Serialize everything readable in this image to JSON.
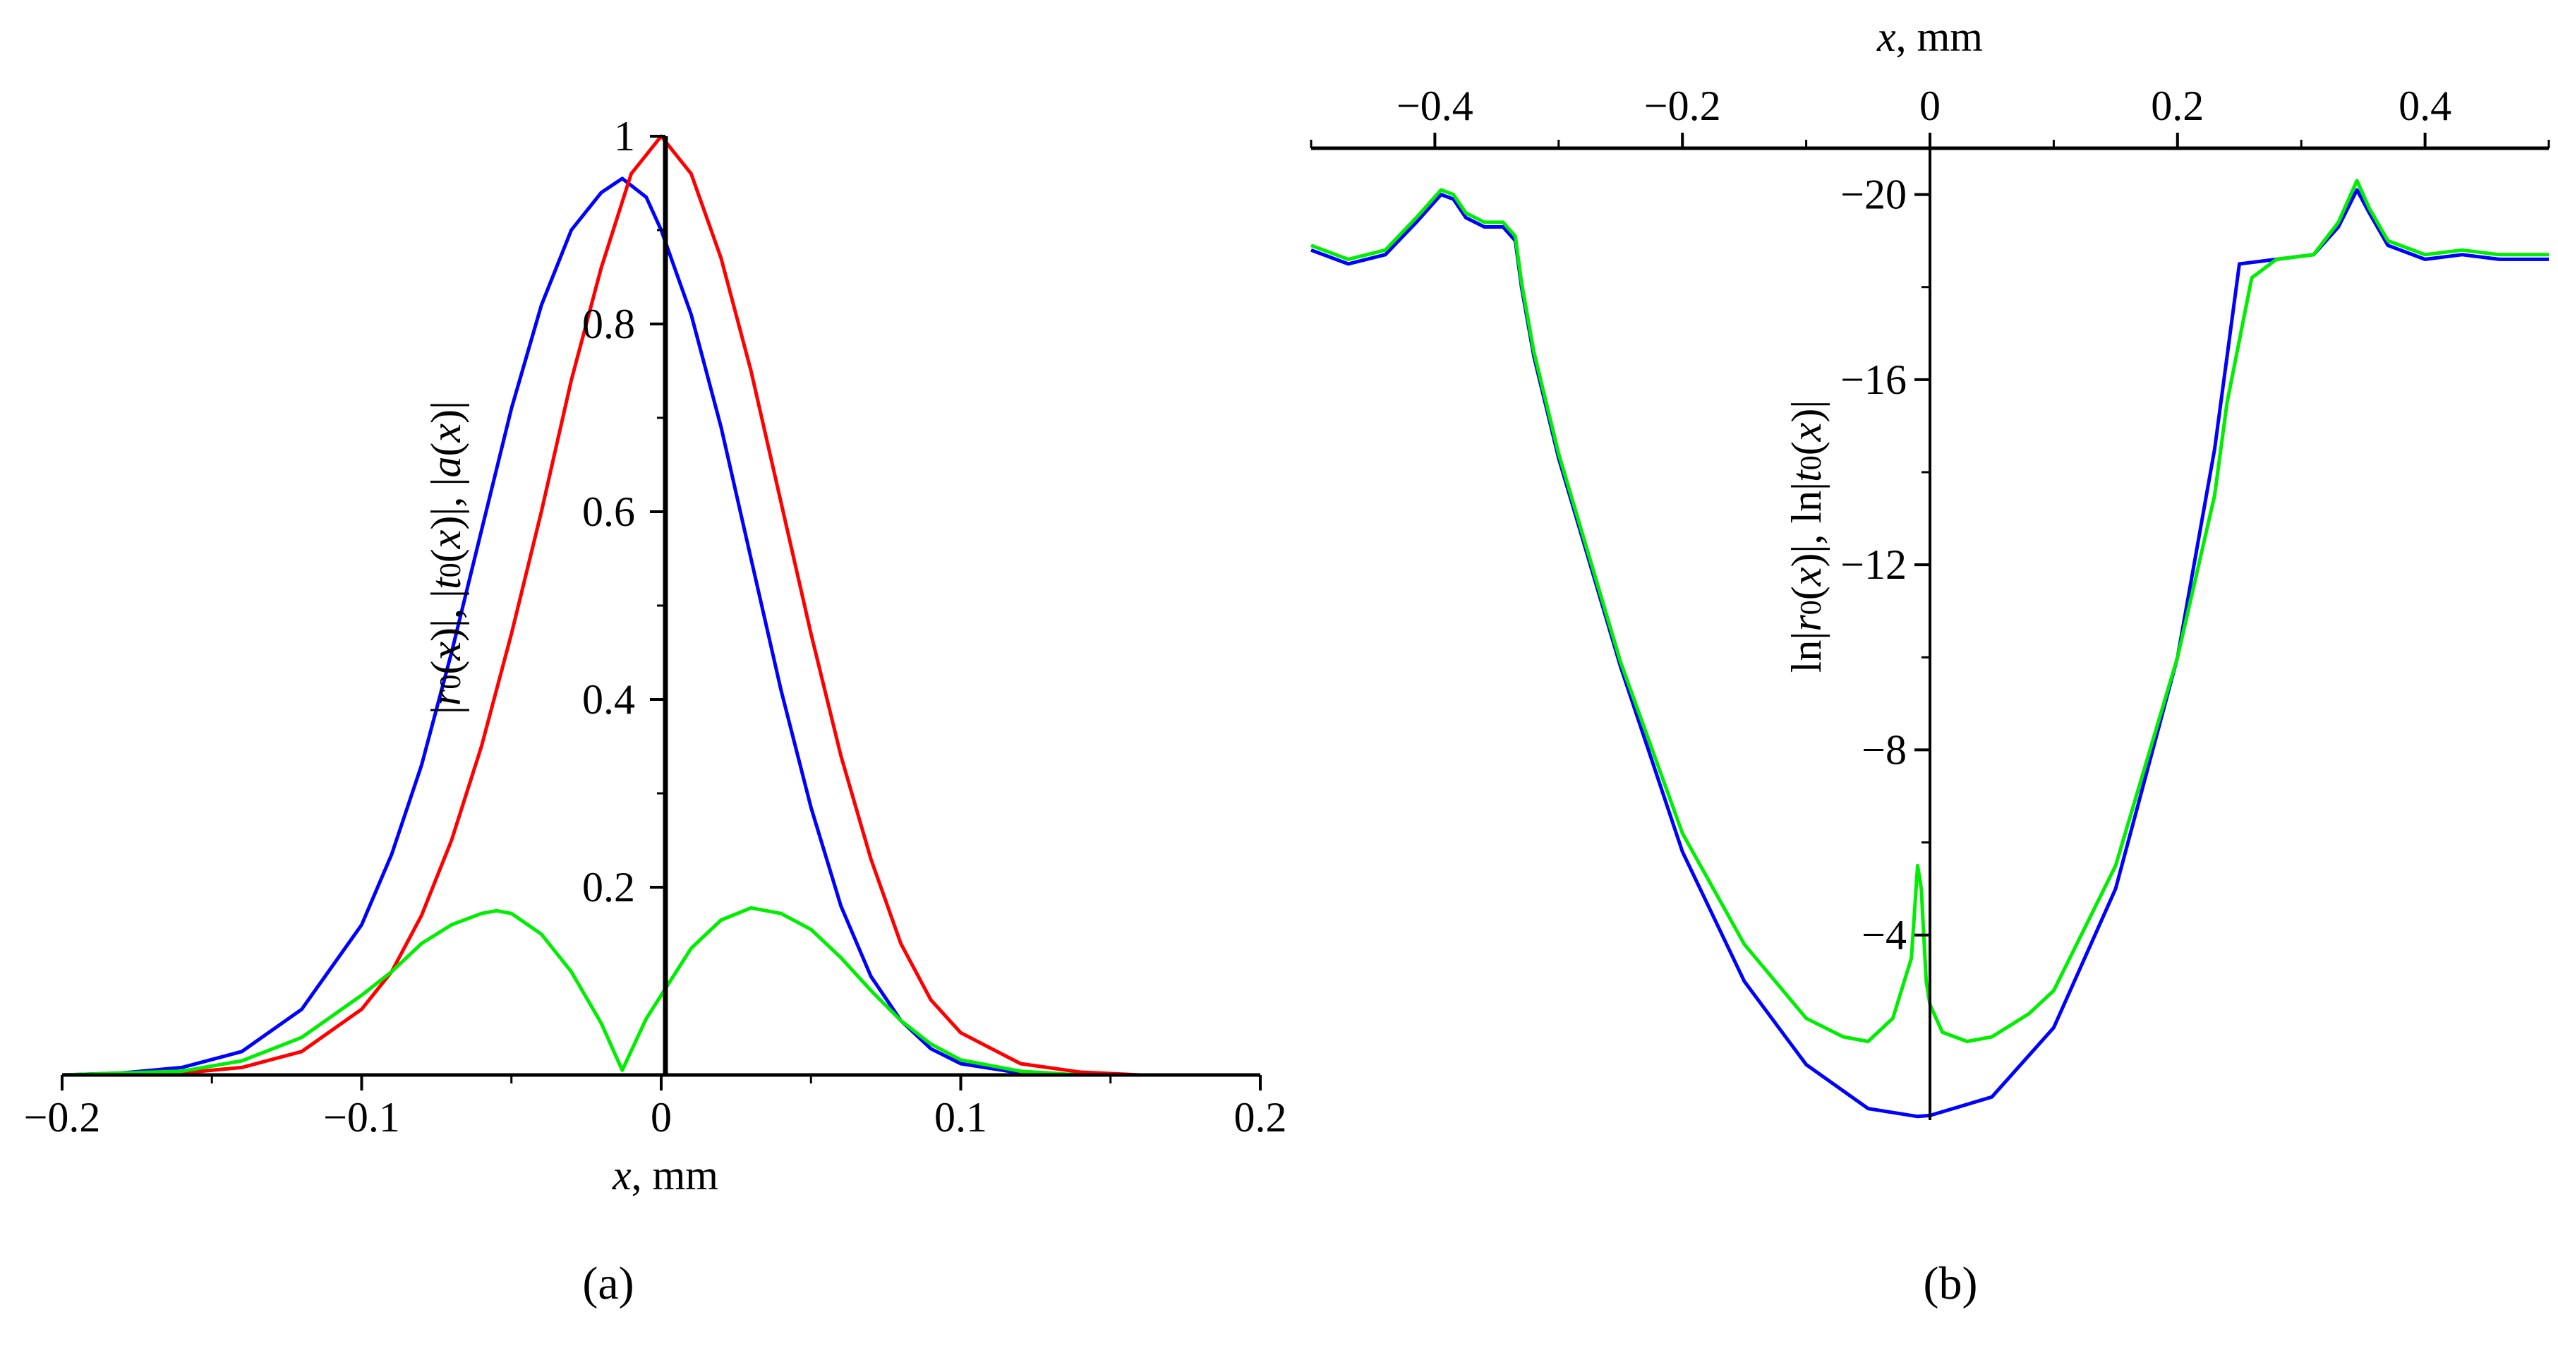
{
  "chart_data": [
    {
      "panel": "a",
      "type": "line",
      "xlabel_var": "x",
      "xlabel_unit": ", mm",
      "ylabel_parts": [
        "|",
        "r",
        "0",
        "(",
        "x",
        ")|, |",
        "t",
        "0",
        "(",
        "x",
        ")|, |",
        "a",
        "(",
        "x",
        ")|"
      ],
      "xlim": [
        -0.2,
        0.2
      ],
      "ylim": [
        0,
        1
      ],
      "x_ticks": [
        {
          "v": -0.2,
          "label": "−0.2"
        },
        {
          "v": -0.1,
          "label": "−0.1"
        },
        {
          "v": 0,
          "label": "0"
        },
        {
          "v": 0.1,
          "label": "0.1"
        },
        {
          "v": 0.2,
          "label": "0.2"
        }
      ],
      "y_ticks": [
        {
          "v": 0.2,
          "label": "0.2"
        },
        {
          "v": 0.4,
          "label": "0.4"
        },
        {
          "v": 0.6,
          "label": "0.6"
        },
        {
          "v": 0.8,
          "label": "0.8"
        },
        {
          "v": 1,
          "label": "1"
        }
      ],
      "series": [
        {
          "name": "|r0(x)|",
          "color": "#0000ff",
          "x": [
            -0.2,
            -0.18,
            -0.16,
            -0.14,
            -0.12,
            -0.1,
            -0.09,
            -0.08,
            -0.07,
            -0.06,
            -0.05,
            -0.04,
            -0.03,
            -0.02,
            -0.013,
            -0.005,
            0,
            0.01,
            0.02,
            0.03,
            0.04,
            0.05,
            0.06,
            0.07,
            0.08,
            0.09,
            0.1,
            0.12,
            0.14,
            0.16,
            0.18,
            0.2
          ],
          "y": [
            0.0,
            0.002,
            0.008,
            0.025,
            0.07,
            0.16,
            0.235,
            0.33,
            0.45,
            0.58,
            0.71,
            0.82,
            0.9,
            0.94,
            0.955,
            0.935,
            0.9,
            0.81,
            0.69,
            0.55,
            0.41,
            0.285,
            0.18,
            0.105,
            0.058,
            0.028,
            0.012,
            0.002,
            0.0,
            0.0,
            0.0,
            0.0
          ]
        },
        {
          "name": "|t0(x)|",
          "color": "#ff0000",
          "x": [
            -0.2,
            -0.16,
            -0.14,
            -0.12,
            -0.1,
            -0.09,
            -0.08,
            -0.07,
            -0.06,
            -0.05,
            -0.04,
            -0.03,
            -0.02,
            -0.01,
            0,
            0.01,
            0.02,
            0.03,
            0.04,
            0.05,
            0.06,
            0.07,
            0.08,
            0.09,
            0.1,
            0.12,
            0.14,
            0.16,
            0.2
          ],
          "y": [
            0.0,
            0.002,
            0.008,
            0.025,
            0.07,
            0.11,
            0.17,
            0.25,
            0.35,
            0.47,
            0.6,
            0.74,
            0.86,
            0.96,
            1.0,
            0.96,
            0.87,
            0.75,
            0.61,
            0.47,
            0.34,
            0.23,
            0.14,
            0.08,
            0.045,
            0.012,
            0.003,
            0.0,
            0.0
          ]
        },
        {
          "name": "|a(x)|",
          "color": "#00ee00",
          "x": [
            -0.2,
            -0.16,
            -0.14,
            -0.12,
            -0.1,
            -0.09,
            -0.08,
            -0.07,
            -0.06,
            -0.055,
            -0.05,
            -0.04,
            -0.03,
            -0.02,
            -0.013,
            -0.005,
            0,
            0.01,
            0.02,
            0.03,
            0.04,
            0.05,
            0.06,
            0.07,
            0.08,
            0.09,
            0.1,
            0.12,
            0.14,
            0.2
          ],
          "y": [
            0.0,
            0.004,
            0.015,
            0.04,
            0.085,
            0.11,
            0.14,
            0.16,
            0.172,
            0.175,
            0.172,
            0.15,
            0.11,
            0.055,
            0.005,
            0.06,
            0.085,
            0.135,
            0.165,
            0.178,
            0.172,
            0.155,
            0.125,
            0.09,
            0.058,
            0.033,
            0.016,
            0.004,
            0.0,
            0.0
          ]
        }
      ],
      "label": "(a)"
    },
    {
      "panel": "b",
      "type": "line",
      "xlabel_var": "x",
      "xlabel_unit": ", mm",
      "ylabel_parts": [
        "ln|",
        "r",
        "0",
        "(",
        "x",
        ")|, ln|",
        "t",
        "0",
        "(",
        "x",
        ")|"
      ],
      "xlim": [
        -0.5,
        0.5
      ],
      "ylim": [
        -21,
        0
      ],
      "x_ticks": [
        {
          "v": -0.4,
          "label": "−0.4"
        },
        {
          "v": -0.2,
          "label": "−0.2"
        },
        {
          "v": 0,
          "label": "0"
        },
        {
          "v": 0.2,
          "label": "0.2"
        },
        {
          "v": 0.4,
          "label": "0.4"
        }
      ],
      "y_ticks": [
        {
          "v": -4,
          "label": "−4"
        },
        {
          "v": -8,
          "label": "−8"
        },
        {
          "v": -12,
          "label": "−12"
        },
        {
          "v": -16,
          "label": "−16"
        },
        {
          "v": -20,
          "label": "−20"
        }
      ],
      "series": [
        {
          "name": "ln|r0(x)|",
          "color": "#0000ff",
          "x": [
            -0.5,
            -0.47,
            -0.44,
            -0.415,
            -0.395,
            -0.385,
            -0.375,
            -0.36,
            -0.345,
            -0.335,
            -0.33,
            -0.32,
            -0.3,
            -0.25,
            -0.2,
            -0.15,
            -0.1,
            -0.05,
            -0.01,
            0.0,
            0.05,
            0.1,
            0.15,
            0.2,
            0.23,
            0.24,
            0.25,
            0.28,
            0.31,
            0.33,
            0.345,
            0.355,
            0.37,
            0.4,
            0.43,
            0.46,
            0.5
          ],
          "y": [
            -18.8,
            -18.5,
            -18.7,
            -19.4,
            -20.0,
            -19.9,
            -19.5,
            -19.3,
            -19.3,
            -19.0,
            -18.0,
            -16.5,
            -14.3,
            -9.8,
            -5.8,
            -3.0,
            -1.2,
            -0.25,
            -0.08,
            -0.1,
            -0.5,
            -2.0,
            -5.0,
            -10.0,
            -14.5,
            -16.5,
            -18.5,
            -18.6,
            -18.7,
            -19.3,
            -20.1,
            -19.6,
            -18.9,
            -18.6,
            -18.7,
            -18.6,
            -18.6
          ]
        },
        {
          "name": "ln|t0(x)|",
          "color": "#00ee00",
          "x": [
            -0.5,
            -0.47,
            -0.44,
            -0.415,
            -0.395,
            -0.385,
            -0.375,
            -0.36,
            -0.345,
            -0.335,
            -0.33,
            -0.32,
            -0.3,
            -0.25,
            -0.2,
            -0.15,
            -0.1,
            -0.07,
            -0.05,
            -0.03,
            -0.015,
            -0.01,
            -0.007,
            -0.003,
            0.0,
            0.01,
            0.03,
            0.05,
            0.08,
            0.1,
            0.15,
            0.2,
            0.23,
            0.24,
            0.26,
            0.28,
            0.31,
            0.33,
            0.345,
            0.355,
            0.37,
            0.4,
            0.43,
            0.46,
            0.5
          ],
          "y": [
            -18.9,
            -18.6,
            -18.8,
            -19.5,
            -20.1,
            -20.0,
            -19.6,
            -19.4,
            -19.4,
            -19.1,
            -18.1,
            -16.6,
            -14.4,
            -9.9,
            -6.2,
            -3.8,
            -2.2,
            -1.8,
            -1.7,
            -2.2,
            -3.5,
            -5.5,
            -5.0,
            -3.0,
            -2.5,
            -1.9,
            -1.7,
            -1.8,
            -2.3,
            -2.8,
            -5.5,
            -10.0,
            -13.5,
            -15.5,
            -18.2,
            -18.6,
            -18.7,
            -19.4,
            -20.3,
            -19.7,
            -19.0,
            -18.7,
            -18.8,
            -18.7,
            -18.7
          ]
        }
      ],
      "label": "(b)"
    }
  ]
}
